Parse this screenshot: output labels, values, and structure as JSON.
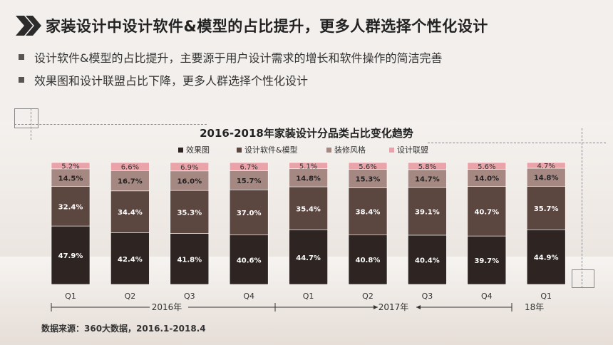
{
  "header": {
    "title": "家装设计中设计软件&模型的占比提升，更多人群选择个性化设计"
  },
  "bullets": [
    "设计软件&模型的占比提升，主要源于用户设计需求的增长和软件操作的简洁完善",
    "效果图和设计联盟占比下降，更多人群选择个性化设计"
  ],
  "colors": {
    "效果图": "#2e2523",
    "设计软件&模型": "#5c4640",
    "装修风格": "#a68882",
    "设计联盟": "#e9a3a9"
  },
  "chart_data": {
    "type": "bar",
    "stacked": true,
    "title": "2016-2018年家装设计分品类占比变化趋势",
    "categories": [
      "Q1",
      "Q2",
      "Q3",
      "Q4",
      "Q1",
      "Q2",
      "Q3",
      "Q4",
      "Q1"
    ],
    "year_groups": [
      {
        "label": "2016年",
        "from": 0,
        "to": 3
      },
      {
        "label": "2017年",
        "from": 4,
        "to": 7
      },
      {
        "label": "18年",
        "from": 8,
        "to": 8
      }
    ],
    "series": [
      {
        "name": "效果图",
        "values": [
          47.9,
          42.4,
          41.8,
          40.6,
          44.7,
          40.8,
          40.4,
          39.7,
          44.9
        ]
      },
      {
        "name": "设计软件&模型",
        "values": [
          32.4,
          34.4,
          35.3,
          37.0,
          35.4,
          38.4,
          39.1,
          40.7,
          35.7
        ]
      },
      {
        "name": "装修风格",
        "values": [
          14.5,
          16.7,
          16.0,
          15.7,
          14.8,
          15.3,
          14.7,
          14.0,
          14.8
        ]
      },
      {
        "name": "设计联盟",
        "values": [
          5.2,
          6.6,
          6.9,
          6.7,
          5.1,
          5.6,
          5.8,
          5.6,
          4.7
        ]
      }
    ],
    "value_suffix": "%",
    "legend_position": "top",
    "ylim": [
      0,
      100
    ]
  },
  "source": "数据来源：360大数据，2016.1-2018.4"
}
